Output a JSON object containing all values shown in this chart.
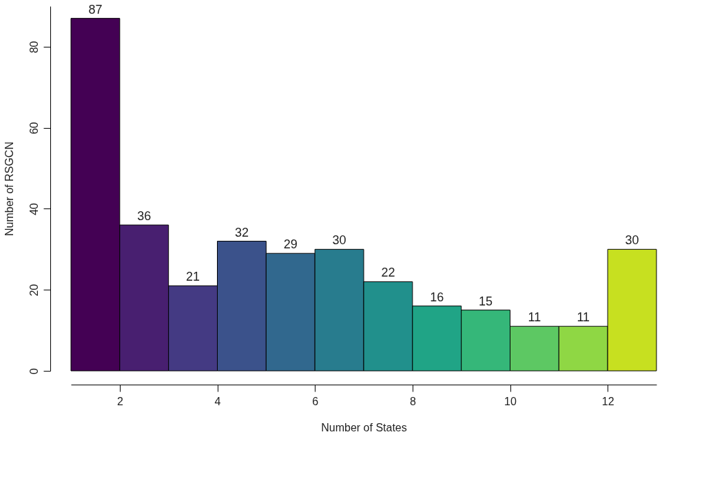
{
  "chart_data": {
    "type": "histogram",
    "xlabel": "Number of States",
    "ylabel": "Number of RSGCN",
    "bins": [
      1,
      2,
      3,
      4,
      5,
      6,
      7,
      8,
      9,
      10,
      11,
      12,
      13
    ],
    "values": [
      87,
      36,
      21,
      32,
      29,
      30,
      22,
      16,
      15,
      11,
      11,
      30
    ],
    "colors": [
      "#440154",
      "#481f70",
      "#443a83",
      "#3b528b",
      "#31688e",
      "#287c8e",
      "#21908c",
      "#20a486",
      "#35b779",
      "#5dc863",
      "#8fd744",
      "#c7e020"
    ],
    "xlim": [
      1,
      13
    ],
    "xticks": [
      2,
      4,
      6,
      8,
      10,
      12
    ],
    "ylim": [
      0,
      90
    ],
    "yticks": [
      0,
      20,
      40,
      60,
      80
    ],
    "data_labels": true,
    "grid": false,
    "legend": false
  }
}
